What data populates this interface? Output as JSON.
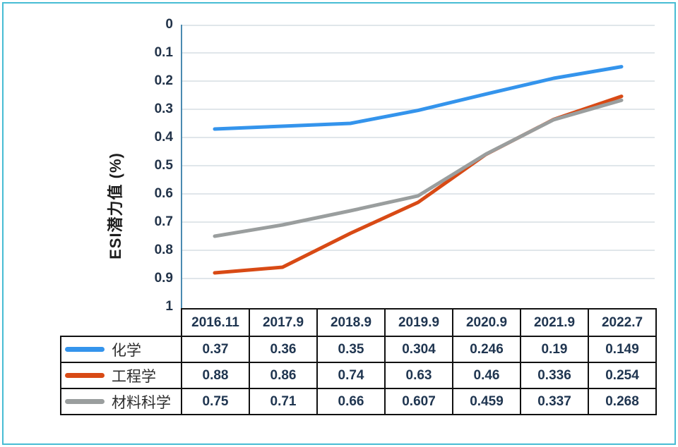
{
  "figure": {
    "border_color": "#47bcd4",
    "background": "#ffffff"
  },
  "chart_data": {
    "type": "line",
    "title": "",
    "ylabel": "ESI潜力值 (%)",
    "xlabel": "",
    "categories": [
      "2016.11",
      "2017.9",
      "2018.9",
      "2019.9",
      "2020.9",
      "2021.9",
      "2022.7"
    ],
    "series": [
      {
        "name": "化学",
        "color": "#3494ec",
        "values": [
          0.37,
          0.36,
          0.35,
          0.304,
          0.246,
          0.19,
          0.149
        ]
      },
      {
        "name": "工程学",
        "color": "#d84a15",
        "values": [
          0.88,
          0.86,
          0.74,
          0.63,
          0.46,
          0.336,
          0.254
        ]
      },
      {
        "name": "材料科学",
        "color": "#9a9e9e",
        "values": [
          0.75,
          0.71,
          0.66,
          0.607,
          0.459,
          0.337,
          0.268
        ]
      }
    ],
    "ylim": [
      0,
      1
    ],
    "y_axis_inverted": true,
    "yticks": [
      "0",
      "0.1",
      "0.2",
      "0.3",
      "0.4",
      "0.5",
      "0.6",
      "0.7",
      "0.8",
      "0.9",
      "1"
    ],
    "grid": "horizontal",
    "gridline_color": "#d5dee4",
    "axis_line_color": "#4a8ab0",
    "legend_position": "table-left"
  }
}
